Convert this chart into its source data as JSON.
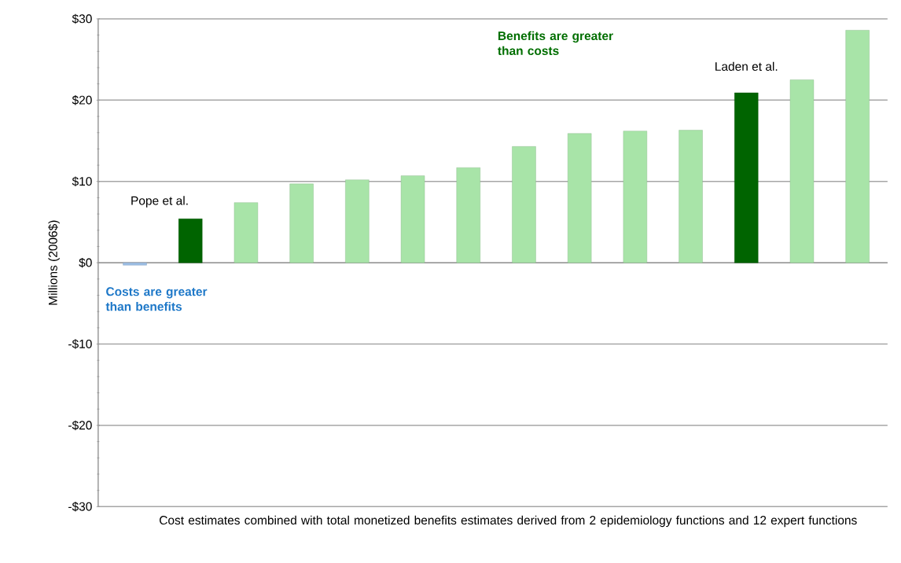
{
  "chart_data": {
    "type": "bar",
    "xlabel": "Cost estimates combined with total monetized benefits estimates derived from 2 epidemiology functions and 12 expert functions",
    "ylabel": "Millions (2006$)",
    "categories": [
      null,
      null,
      null,
      null,
      null,
      null,
      null,
      null,
      null,
      null,
      null,
      null,
      null,
      null
    ],
    "values": [
      -0.3,
      5.4,
      7.4,
      9.7,
      10.2,
      10.7,
      11.7,
      14.3,
      15.9,
      16.2,
      16.3,
      20.9,
      22.5,
      28.6
    ],
    "colors": [
      "#9dbfe6",
      "#006400",
      "#a8e4a8",
      "#a8e4a8",
      "#a8e4a8",
      "#a8e4a8",
      "#a8e4a8",
      "#a8e4a8",
      "#a8e4a8",
      "#a8e4a8",
      "#a8e4a8",
      "#006400",
      "#a8e4a8",
      "#a8e4a8"
    ],
    "ylim": [
      -30,
      30
    ],
    "yticks": [
      {
        "value": -30,
        "label": "-$30"
      },
      {
        "value": -20,
        "label": "-$20"
      },
      {
        "value": -10,
        "label": "-$10"
      },
      {
        "value": 0,
        "label": "$0"
      },
      {
        "value": 10,
        "label": "$10"
      },
      {
        "value": 20,
        "label": "$20"
      },
      {
        "value": 30,
        "label": "$30"
      }
    ],
    "grid": "y",
    "annotations": [
      "Pope et al.",
      "Laden et al.",
      "Benefits are greater than costs",
      "Costs are greater than benefits"
    ]
  }
}
